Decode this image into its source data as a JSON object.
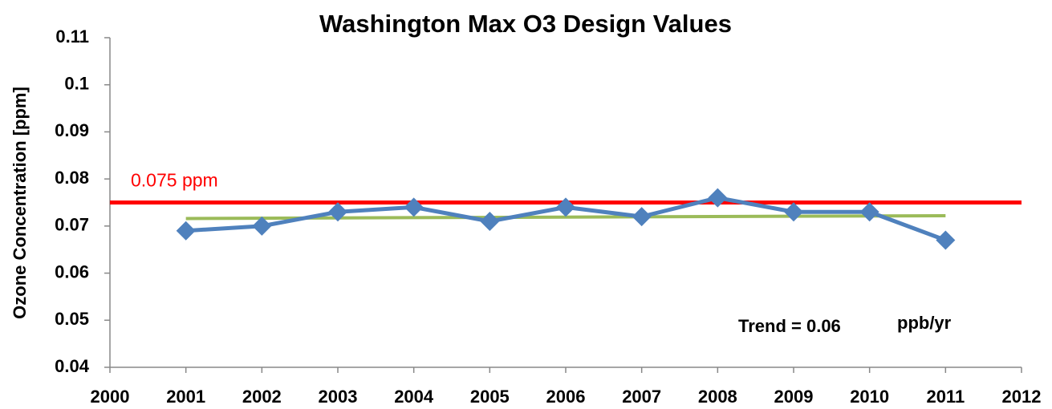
{
  "chart_data": {
    "type": "line",
    "title": "Washington Max O3 Design Values",
    "y_label": "Ozone Concentration [ppm]",
    "x": [
      2001,
      2002,
      2003,
      2004,
      2005,
      2006,
      2007,
      2008,
      2009,
      2010,
      2011
    ],
    "series": [
      {
        "color": "#4f81bd",
        "values": [
          0.069,
          0.07,
          0.073,
          0.074,
          0.071,
          0.074,
          0.072,
          0.076,
          0.073,
          0.073,
          0.067
        ]
      }
    ],
    "trend_line": {
      "x": [
        2001,
        2011
      ],
      "values": [
        0.0716,
        0.0722
      ],
      "color": "#9bbb59"
    },
    "reference_lines": [
      {
        "value": 0.075,
        "label": "0.075 ppm",
        "color": "#ff0000"
      }
    ],
    "annotations": [
      "Trend = 0.06",
      "ppb/yr"
    ],
    "xlim": [
      2000,
      2012
    ],
    "xticks": [
      2000,
      2001,
      2002,
      2003,
      2004,
      2005,
      2006,
      2007,
      2008,
      2009,
      2010,
      2011,
      2012
    ],
    "ylim": [
      0.04,
      0.11
    ],
    "yticks": [
      0.04,
      0.05,
      0.06,
      0.07,
      0.08,
      0.09,
      0.1,
      0.11
    ],
    "grid": false
  }
}
